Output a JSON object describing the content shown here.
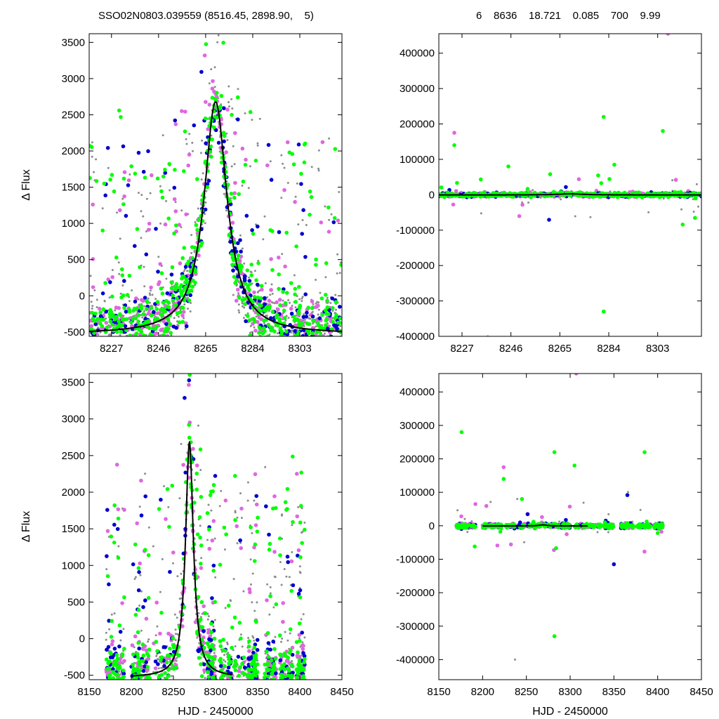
{
  "header": {
    "left": "SSO02N0803.039559 (8516.45, 2898.90,    5)",
    "right": "6    8636    18.721    0.085    700    9.99"
  },
  "chart_data": [
    {
      "type": "scatter",
      "panel": "top-left",
      "ylabel": "Δ Flux",
      "xlabel": "",
      "xlim": [
        8218,
        8320
      ],
      "ylim": [
        -560,
        3620
      ],
      "xticks": [
        8227,
        8246,
        8265,
        8284,
        8303
      ],
      "yticks": [
        -500,
        0,
        500,
        1000,
        1500,
        2000,
        2500,
        3000,
        3500
      ],
      "model": {
        "type": "lorentzian",
        "center": 8269,
        "amplitude": 3210,
        "hwhm": 5.6,
        "baseline": -530
      },
      "colors": {
        "grey": "#8c8c8c",
        "green": "#00ff00",
        "violet": "#e066e0",
        "blue": "#0000cc",
        "model": "#000000"
      }
    },
    {
      "type": "scatter",
      "panel": "top-right",
      "ylabel": "",
      "xlabel": "",
      "xlim": [
        8218,
        8320
      ],
      "ylim": [
        -400000,
        455000
      ],
      "xticks": [
        8227,
        8246,
        8265,
        8284,
        8303
      ],
      "yticks": [
        -400000,
        -300000,
        -200000,
        -100000,
        0,
        100000,
        200000,
        300000,
        400000
      ],
      "model": {
        "type": "lorentzian",
        "center": 8269,
        "amplitude": 3210,
        "hwhm": 5.6,
        "baseline": -530
      },
      "colors": {
        "grey": "#8c8c8c",
        "green": "#00ff00",
        "violet": "#e066e0",
        "blue": "#0000cc",
        "model": "#000000"
      }
    },
    {
      "type": "scatter",
      "panel": "bottom-left",
      "ylabel": "Δ Flux",
      "xlabel": "HJD - 2450000",
      "xlim": [
        8150,
        8450
      ],
      "ylim": [
        -560,
        3620
      ],
      "xticks": [
        8150,
        8200,
        8250,
        8300,
        8350,
        8400,
        8450
      ],
      "yticks": [
        -500,
        0,
        500,
        1000,
        1500,
        2000,
        2500,
        3000,
        3500
      ],
      "model": {
        "type": "lorentzian",
        "center": 8269,
        "amplitude": 3210,
        "hwhm": 5.6,
        "baseline": -530
      },
      "colors": {
        "grey": "#8c8c8c",
        "green": "#00ff00",
        "violet": "#e066e0",
        "blue": "#0000cc",
        "model": "#000000"
      }
    },
    {
      "type": "scatter",
      "panel": "bottom-right",
      "ylabel": "",
      "xlabel": "HJD - 2450000",
      "xlim": [
        8150,
        8450
      ],
      "ylim": [
        -460000,
        455000
      ],
      "xticks": [
        8150,
        8200,
        8250,
        8300,
        8350,
        8400,
        8450
      ],
      "yticks": [
        -400000,
        -300000,
        -200000,
        -100000,
        0,
        100000,
        200000,
        300000,
        400000
      ],
      "model": {
        "type": "lorentzian",
        "center": 8269,
        "amplitude": 3210,
        "hwhm": 5.6,
        "baseline": -530
      },
      "colors": {
        "grey": "#8c8c8c",
        "green": "#00ff00",
        "violet": "#e066e0",
        "blue": "#0000cc",
        "model": "#000000"
      }
    }
  ]
}
